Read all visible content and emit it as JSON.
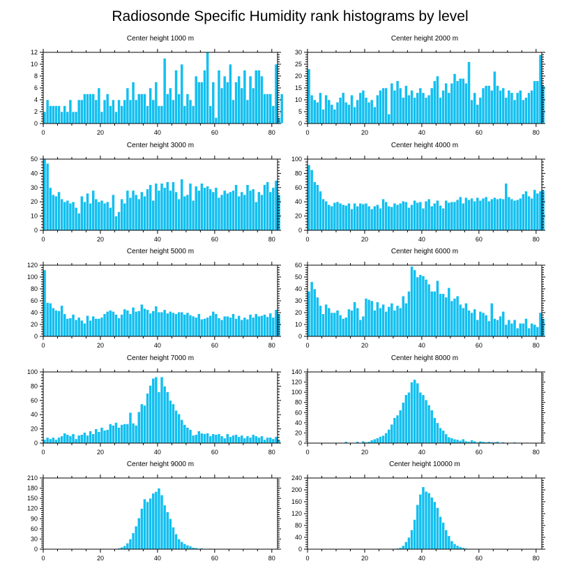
{
  "figure": {
    "title": "Radiosonde Specific Humidity rank histograms by level",
    "bar_color": "#12bff0"
  },
  "chart_data": [
    {
      "type": "bar",
      "title": "Center height 1000 m",
      "x_start": 0,
      "xlim": [
        0,
        82
      ],
      "xticks": [
        0,
        20,
        40,
        60,
        80
      ],
      "ylim": [
        0,
        12
      ],
      "yticks": [
        0,
        2,
        4,
        6,
        8,
        10,
        12
      ],
      "values": [
        2,
        4,
        3,
        3,
        3,
        3,
        2,
        3,
        2,
        4,
        2,
        2,
        4,
        4,
        5,
        5,
        5,
        5,
        4,
        6,
        2,
        4,
        5,
        3,
        4,
        2,
        4,
        3,
        4,
        6,
        4,
        7,
        4,
        5,
        5,
        5,
        3,
        6,
        4,
        7,
        3,
        3,
        11,
        5,
        6,
        4,
        9,
        5,
        10,
        3,
        5,
        4,
        3,
        8,
        7,
        7,
        9,
        12,
        3,
        7,
        1,
        9,
        6,
        8,
        7,
        10,
        4,
        7,
        8,
        6,
        9,
        4,
        8,
        6,
        9,
        9,
        8,
        5,
        5,
        5,
        3,
        10,
        1,
        5
      ]
    },
    {
      "type": "bar",
      "title": "Center height 2000 m",
      "x_start": 0,
      "xlim": [
        0,
        82
      ],
      "xticks": [
        0,
        20,
        40,
        60,
        80
      ],
      "ylim": [
        0,
        30
      ],
      "yticks": [
        0,
        5,
        10,
        15,
        20,
        25,
        30
      ],
      "values": [
        23,
        12,
        10,
        9,
        13,
        6,
        12,
        10,
        8,
        6,
        9,
        11,
        13,
        9,
        8,
        12,
        7,
        10,
        13,
        14,
        11,
        9,
        10,
        7,
        12,
        14,
        15,
        15,
        4,
        17,
        14,
        18,
        15,
        11,
        16,
        12,
        14,
        11,
        13,
        15,
        13,
        11,
        12,
        15,
        18,
        20,
        11,
        14,
        17,
        13,
        17,
        21,
        18,
        19,
        19,
        17,
        26,
        10,
        13,
        8,
        11,
        15,
        16,
        16,
        14,
        22,
        16,
        14,
        15,
        11,
        14,
        13,
        10,
        13,
        14,
        10,
        11,
        13,
        14,
        18,
        18,
        29,
        16
      ]
    },
    {
      "type": "bar",
      "title": "Center height 3000 m",
      "x_start": 0,
      "xlim": [
        0,
        82
      ],
      "xticks": [
        0,
        20,
        40,
        60,
        80
      ],
      "ylim": [
        0,
        50
      ],
      "yticks": [
        0,
        10,
        20,
        30,
        40,
        50
      ],
      "values": [
        50,
        47,
        30,
        25,
        24,
        27,
        22,
        20,
        21,
        19,
        20,
        16,
        12,
        24,
        20,
        26,
        19,
        28,
        22,
        20,
        21,
        19,
        20,
        16,
        25,
        10,
        13,
        22,
        19,
        28,
        23,
        28,
        25,
        22,
        27,
        24,
        29,
        32,
        21,
        33,
        28,
        33,
        30,
        34,
        28,
        34,
        27,
        22,
        36,
        24,
        25,
        33,
        21,
        31,
        28,
        33,
        30,
        31,
        29,
        27,
        30,
        23,
        25,
        28,
        26,
        27,
        28,
        32,
        24,
        27,
        25,
        32,
        28,
        29,
        20,
        27,
        25,
        32,
        34,
        27,
        30,
        35,
        25
      ]
    },
    {
      "type": "bar",
      "title": "Center height 4000 m",
      "x_start": 0,
      "xlim": [
        0,
        82
      ],
      "xticks": [
        0,
        20,
        40,
        60,
        80
      ],
      "ylim": [
        0,
        100
      ],
      "yticks": [
        0,
        20,
        40,
        60,
        80,
        100
      ],
      "values": [
        92,
        85,
        68,
        64,
        55,
        44,
        41,
        36,
        34,
        39,
        40,
        38,
        36,
        35,
        38,
        30,
        38,
        34,
        38,
        37,
        38,
        34,
        30,
        34,
        36,
        31,
        44,
        40,
        34,
        33,
        38,
        36,
        38,
        41,
        40,
        32,
        36,
        42,
        39,
        40,
        31,
        41,
        44,
        34,
        38,
        42,
        35,
        31,
        42,
        39,
        40,
        40,
        43,
        47,
        38,
        46,
        43,
        45,
        41,
        46,
        42,
        45,
        47,
        41,
        44,
        46,
        44,
        45,
        44,
        66,
        47,
        44,
        42,
        43,
        45,
        51,
        55,
        48,
        45,
        57,
        52,
        55,
        56
      ]
    },
    {
      "type": "bar",
      "title": "Center height 5000 m",
      "x_start": 0,
      "xlim": [
        0,
        82
      ],
      "xticks": [
        0,
        20,
        40,
        60,
        80
      ],
      "ylim": [
        0,
        120
      ],
      "yticks": [
        0,
        20,
        40,
        60,
        80,
        100,
        120
      ],
      "values": [
        112,
        57,
        56,
        48,
        44,
        43,
        52,
        38,
        30,
        31,
        37,
        28,
        32,
        27,
        22,
        35,
        27,
        34,
        30,
        30,
        32,
        38,
        42,
        44,
        42,
        37,
        31,
        37,
        46,
        44,
        38,
        49,
        42,
        43,
        54,
        47,
        45,
        39,
        43,
        51,
        41,
        41,
        45,
        39,
        42,
        40,
        38,
        41,
        41,
        37,
        40,
        36,
        34,
        32,
        38,
        29,
        30,
        32,
        35,
        42,
        38,
        31,
        28,
        34,
        34,
        32,
        38,
        30,
        35,
        28,
        32,
        29,
        37,
        32,
        38,
        34,
        35,
        37,
        33,
        39,
        32,
        45,
        38
      ]
    },
    {
      "type": "bar",
      "title": "Center height 6000 m",
      "x_start": 0,
      "xlim": [
        0,
        82
      ],
      "xticks": [
        0,
        20,
        40,
        60,
        80
      ],
      "ylim": [
        0,
        60
      ],
      "yticks": [
        0,
        10,
        20,
        30,
        40,
        50,
        60
      ],
      "values": [
        38,
        46,
        40,
        33,
        26,
        19,
        27,
        24,
        20,
        20,
        22,
        18,
        15,
        16,
        23,
        22,
        29,
        24,
        14,
        17,
        32,
        31,
        30,
        22,
        29,
        24,
        27,
        21,
        25,
        28,
        22,
        26,
        24,
        34,
        28,
        38,
        59,
        56,
        50,
        52,
        51,
        48,
        44,
        38,
        38,
        47,
        36,
        36,
        33,
        41,
        30,
        32,
        34,
        27,
        24,
        28,
        22,
        20,
        23,
        14,
        21,
        20,
        18,
        13,
        28,
        15,
        14,
        17,
        21,
        10,
        14,
        11,
        14,
        7,
        11,
        11,
        15,
        7,
        11,
        10,
        8,
        20,
        15
      ]
    },
    {
      "type": "bar",
      "title": "Center height 7000 m",
      "x_start": 0,
      "xlim": [
        0,
        82
      ],
      "xticks": [
        0,
        20,
        40,
        60,
        80
      ],
      "ylim": [
        0,
        100
      ],
      "yticks": [
        0,
        20,
        40,
        60,
        80,
        100
      ],
      "values": [
        5,
        8,
        6,
        8,
        5,
        8,
        10,
        14,
        12,
        10,
        13,
        6,
        11,
        12,
        15,
        11,
        17,
        13,
        20,
        16,
        22,
        18,
        19,
        27,
        25,
        29,
        22,
        26,
        27,
        27,
        43,
        28,
        25,
        44,
        55,
        53,
        70,
        81,
        91,
        93,
        72,
        93,
        80,
        72,
        60,
        55,
        46,
        41,
        33,
        26,
        22,
        19,
        11,
        12,
        17,
        14,
        13,
        14,
        10,
        13,
        12,
        13,
        10,
        7,
        13,
        9,
        11,
        12,
        9,
        11,
        7,
        10,
        8,
        12,
        10,
        8,
        10,
        5,
        8,
        8,
        6,
        9,
        4
      ]
    },
    {
      "type": "bar",
      "title": "Center height 8000 m",
      "x_start": 0,
      "xlim": [
        0,
        82
      ],
      "xticks": [
        0,
        20,
        40,
        60,
        80
      ],
      "ylim": [
        0,
        140
      ],
      "yticks": [
        0,
        20,
        40,
        60,
        80,
        100,
        120,
        140
      ],
      "values": [
        0,
        0,
        0,
        0,
        0,
        0,
        0,
        0,
        0,
        1,
        0,
        0,
        1,
        3,
        1,
        0,
        1,
        3,
        1,
        4,
        2,
        3,
        6,
        8,
        10,
        13,
        15,
        20,
        27,
        37,
        50,
        55,
        65,
        80,
        95,
        100,
        120,
        125,
        118,
        100,
        95,
        85,
        75,
        65,
        50,
        40,
        30,
        25,
        18,
        12,
        10,
        8,
        7,
        5,
        8,
        4,
        3,
        6,
        4,
        2,
        4,
        3,
        2,
        3,
        2,
        2,
        3,
        1,
        2,
        1,
        1,
        0,
        2,
        1,
        0,
        1,
        0,
        1,
        0,
        0,
        0,
        0,
        0
      ]
    },
    {
      "type": "bar",
      "title": "Center height 9000 m",
      "x_start": 0,
      "xlim": [
        0,
        82
      ],
      "xticks": [
        0,
        20,
        40,
        60,
        80
      ],
      "ylim": [
        0,
        210
      ],
      "yticks": [
        0,
        30,
        60,
        90,
        120,
        150,
        180,
        210
      ],
      "values": [
        0,
        0,
        0,
        0,
        0,
        0,
        0,
        0,
        0,
        0,
        0,
        0,
        0,
        0,
        0,
        0,
        0,
        0,
        0,
        0,
        0,
        0,
        0,
        0,
        1,
        1,
        3,
        6,
        10,
        18,
        30,
        48,
        68,
        92,
        120,
        148,
        140,
        150,
        165,
        170,
        180,
        160,
        130,
        110,
        90,
        65,
        45,
        30,
        22,
        16,
        12,
        9,
        5,
        4,
        2,
        3,
        1,
        1,
        2,
        1,
        0,
        1,
        0,
        1,
        0,
        0,
        0,
        0,
        0,
        0,
        0,
        0,
        0,
        0,
        0,
        0,
        0,
        0,
        0,
        0,
        0,
        0,
        0
      ]
    },
    {
      "type": "bar",
      "title": "Center height 10000 m",
      "x_start": 0,
      "xlim": [
        0,
        82
      ],
      "xticks": [
        0,
        20,
        40,
        60,
        80
      ],
      "ylim": [
        0,
        240
      ],
      "yticks": [
        0,
        40,
        80,
        120,
        160,
        200,
        240
      ],
      "values": [
        0,
        0,
        0,
        0,
        0,
        0,
        0,
        0,
        0,
        0,
        0,
        0,
        0,
        0,
        0,
        0,
        0,
        0,
        0,
        0,
        0,
        0,
        0,
        0,
        0,
        0,
        0,
        0,
        0,
        1,
        2,
        3,
        5,
        12,
        25,
        40,
        65,
        100,
        150,
        185,
        210,
        195,
        190,
        175,
        160,
        140,
        110,
        90,
        65,
        45,
        28,
        18,
        12,
        8,
        5,
        3,
        2,
        2,
        1,
        1,
        0,
        0,
        0,
        0,
        0,
        0,
        0,
        0,
        0,
        0,
        0,
        0,
        0,
        0,
        0,
        0,
        0,
        0,
        0,
        0,
        0,
        0,
        0
      ]
    }
  ]
}
